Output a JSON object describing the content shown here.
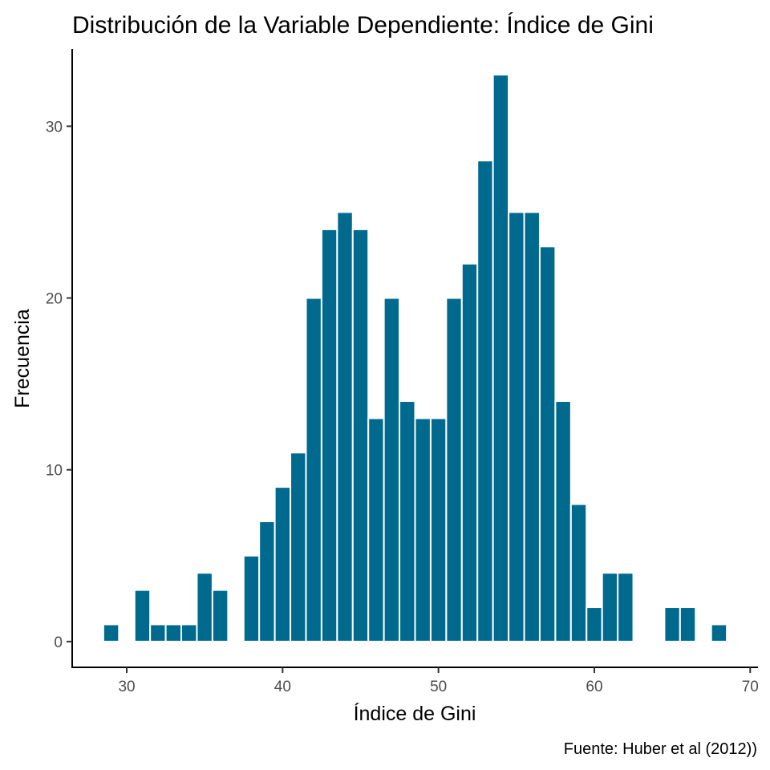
{
  "chart_data": {
    "type": "bar",
    "title": "Distribución de la Variable Dependiente: Índice de Gini",
    "xlabel": "Índice de Gini",
    "ylabel": "Frecuencia",
    "caption": "Fuente: Huber et al (2012))",
    "bar_color": "#006a8e",
    "bar_outline": "#ffffff",
    "bin_width": 1,
    "xlim": [
      26.5,
      70.5
    ],
    "ylim": [
      -1.5,
      34.5
    ],
    "x_ticks": [
      30,
      40,
      50,
      60,
      70
    ],
    "y_ticks": [
      0,
      10,
      20,
      30
    ],
    "x_tick_labels": [
      "30",
      "40",
      "50",
      "60",
      "70"
    ],
    "y_tick_labels": [
      "0",
      "10",
      "20",
      "30"
    ],
    "grid": false,
    "legend": "none",
    "bins": [
      {
        "x": 29,
        "count": 1
      },
      {
        "x": 31,
        "count": 3
      },
      {
        "x": 32,
        "count": 1
      },
      {
        "x": 33,
        "count": 1
      },
      {
        "x": 34,
        "count": 1
      },
      {
        "x": 35,
        "count": 4
      },
      {
        "x": 36,
        "count": 3
      },
      {
        "x": 38,
        "count": 5
      },
      {
        "x": 39,
        "count": 7
      },
      {
        "x": 40,
        "count": 9
      },
      {
        "x": 41,
        "count": 11
      },
      {
        "x": 42,
        "count": 20
      },
      {
        "x": 43,
        "count": 24
      },
      {
        "x": 44,
        "count": 25
      },
      {
        "x": 45,
        "count": 24
      },
      {
        "x": 46,
        "count": 13
      },
      {
        "x": 47,
        "count": 20
      },
      {
        "x": 48,
        "count": 14
      },
      {
        "x": 49,
        "count": 13
      },
      {
        "x": 50,
        "count": 13
      },
      {
        "x": 51,
        "count": 20
      },
      {
        "x": 52,
        "count": 22
      },
      {
        "x": 53,
        "count": 28
      },
      {
        "x": 54,
        "count": 33
      },
      {
        "x": 55,
        "count": 25
      },
      {
        "x": 56,
        "count": 25
      },
      {
        "x": 57,
        "count": 23
      },
      {
        "x": 58,
        "count": 14
      },
      {
        "x": 59,
        "count": 8
      },
      {
        "x": 60,
        "count": 2
      },
      {
        "x": 61,
        "count": 4
      },
      {
        "x": 62,
        "count": 4
      },
      {
        "x": 65,
        "count": 2
      },
      {
        "x": 66,
        "count": 2
      },
      {
        "x": 68,
        "count": 1
      }
    ]
  }
}
